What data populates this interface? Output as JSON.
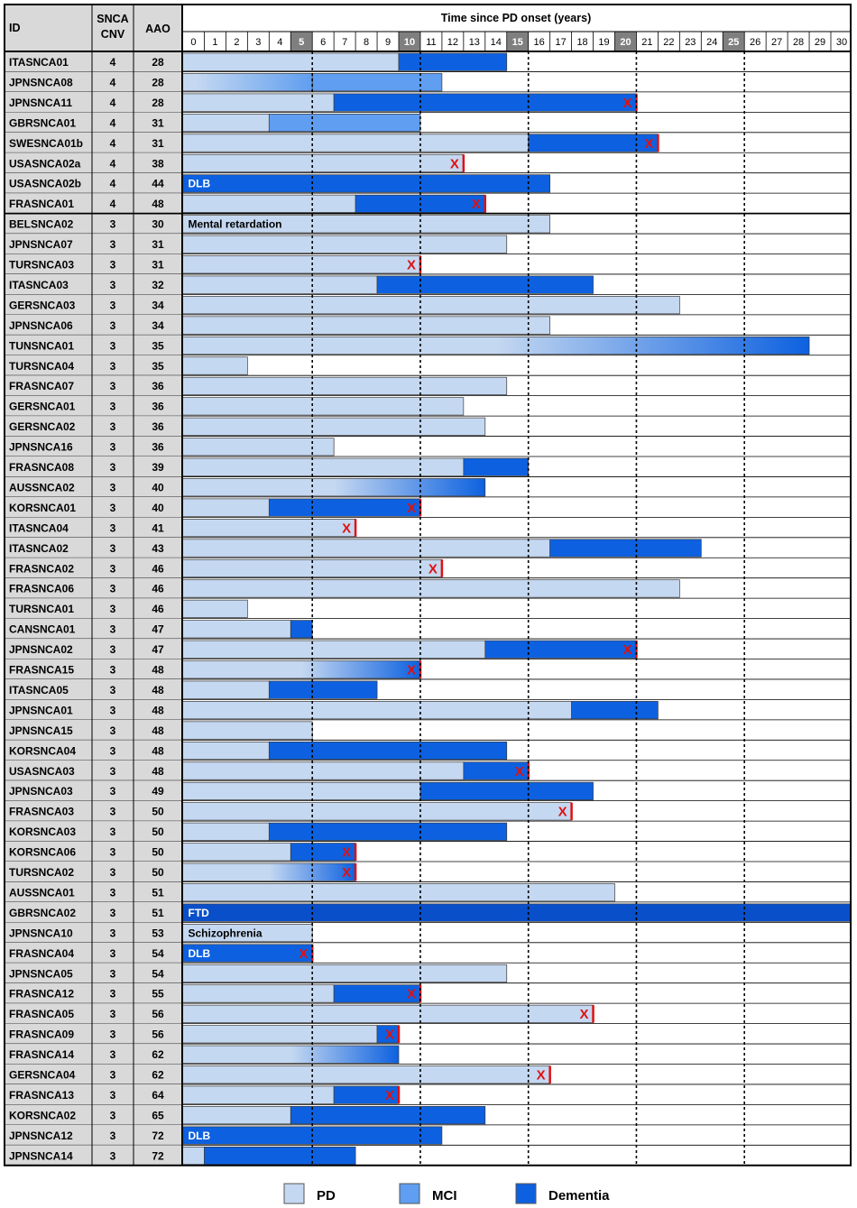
{
  "headers": {
    "id": "ID",
    "cnv_line1": "SNCA",
    "cnv_line2": "CNV",
    "aao": "AAO",
    "time": "Time since PD onset (years)"
  },
  "colors": {
    "pd": "#c5d8f1",
    "mci": "#5f9ef0",
    "dementia": "#0d61e0",
    "ftd": "#0a4fca",
    "id_column_bg": "#d9d9d9",
    "highlight_tick_bg": "#7f7f7f",
    "death_marker": "#e01010"
  },
  "legend": [
    {
      "key": "pd",
      "label": "PD"
    },
    {
      "key": "mci",
      "label": "MCI"
    },
    {
      "key": "dementia",
      "label": "Dementia"
    }
  ],
  "chart_data": {
    "type": "bar",
    "orientation": "horizontal-timeline",
    "title": "Time since PD onset (years)",
    "xlim": [
      0,
      31
    ],
    "x_ticks": [
      0,
      1,
      2,
      3,
      4,
      5,
      6,
      7,
      8,
      9,
      10,
      11,
      12,
      13,
      14,
      15,
      16,
      17,
      18,
      19,
      20,
      21,
      22,
      23,
      24,
      25,
      26,
      27,
      28,
      29,
      30
    ],
    "highlighted_ticks": [
      5,
      10,
      15,
      20,
      25
    ],
    "dotted_gridlines": [
      6,
      11,
      16,
      21,
      26
    ],
    "group_divider_after_row": 7,
    "rows": [
      {
        "id": "ITASNCA01",
        "cnv": 4,
        "aao": 28,
        "segments": [
          {
            "type": "pd",
            "from": 0,
            "to": 10
          },
          {
            "type": "dementia",
            "from": 10,
            "to": 15
          }
        ]
      },
      {
        "id": "JPNSNCA08",
        "cnv": 4,
        "aao": 28,
        "segments": [
          {
            "type": "pd-mci",
            "from": 0,
            "to": 6
          },
          {
            "type": "mci",
            "from": 6,
            "to": 12
          }
        ]
      },
      {
        "id": "JPNSNCA11",
        "cnv": 4,
        "aao": 28,
        "segments": [
          {
            "type": "pd",
            "from": 0,
            "to": 7
          },
          {
            "type": "dementia",
            "from": 7,
            "to": 21
          }
        ],
        "death": 21
      },
      {
        "id": "GBRSNCA01",
        "cnv": 4,
        "aao": 31,
        "segments": [
          {
            "type": "pd",
            "from": 0,
            "to": 4
          },
          {
            "type": "mci",
            "from": 4,
            "to": 11
          }
        ]
      },
      {
        "id": "SWESNCA01b",
        "cnv": 4,
        "aao": 31,
        "segments": [
          {
            "type": "pd",
            "from": 0,
            "to": 16
          },
          {
            "type": "dementia",
            "from": 16,
            "to": 22
          }
        ],
        "death": 22
      },
      {
        "id": "USASNCA02a",
        "cnv": 4,
        "aao": 38,
        "segments": [
          {
            "type": "pd",
            "from": 0,
            "to": 13
          }
        ],
        "death": 13
      },
      {
        "id": "USASNCA02b",
        "cnv": 4,
        "aao": 44,
        "segments": [
          {
            "type": "dementia",
            "from": 0,
            "to": 17
          }
        ],
        "note": "DLB"
      },
      {
        "id": "FRASNCA01",
        "cnv": 4,
        "aao": 48,
        "segments": [
          {
            "type": "pd",
            "from": 0,
            "to": 8
          },
          {
            "type": "dementia",
            "from": 8,
            "to": 14
          }
        ],
        "death": 14
      },
      {
        "id": "BELSNCA02",
        "cnv": 3,
        "aao": 30,
        "segments": [
          {
            "type": "pd",
            "from": 0,
            "to": 17
          }
        ],
        "note": "Mental retardation"
      },
      {
        "id": "JPNSNCA07",
        "cnv": 3,
        "aao": 31,
        "segments": [
          {
            "type": "pd",
            "from": 0,
            "to": 15
          }
        ]
      },
      {
        "id": "TURSNCA03",
        "cnv": 3,
        "aao": 31,
        "segments": [
          {
            "type": "pd",
            "from": 0,
            "to": 11
          }
        ],
        "death": 11
      },
      {
        "id": "ITASNCA03",
        "cnv": 3,
        "aao": 32,
        "segments": [
          {
            "type": "pd",
            "from": 0,
            "to": 9
          },
          {
            "type": "dementia",
            "from": 9,
            "to": 19
          }
        ]
      },
      {
        "id": "GERSNCA03",
        "cnv": 3,
        "aao": 34,
        "segments": [
          {
            "type": "pd",
            "from": 0,
            "to": 23
          }
        ]
      },
      {
        "id": "JPNSNCA06",
        "cnv": 3,
        "aao": 34,
        "segments": [
          {
            "type": "pd",
            "from": 0,
            "to": 17
          }
        ]
      },
      {
        "id": "TUNSNCA01",
        "cnv": 3,
        "aao": 35,
        "segments": [
          {
            "type": "pd-dementia",
            "from": 0,
            "to": 29
          }
        ]
      },
      {
        "id": "TURSNCA04",
        "cnv": 3,
        "aao": 35,
        "segments": [
          {
            "type": "pd",
            "from": 0,
            "to": 3
          }
        ]
      },
      {
        "id": "FRASNCA07",
        "cnv": 3,
        "aao": 36,
        "segments": [
          {
            "type": "pd",
            "from": 0,
            "to": 15
          }
        ]
      },
      {
        "id": "GERSNCA01",
        "cnv": 3,
        "aao": 36,
        "segments": [
          {
            "type": "pd",
            "from": 0,
            "to": 13
          }
        ]
      },
      {
        "id": "GERSNCA02",
        "cnv": 3,
        "aao": 36,
        "segments": [
          {
            "type": "pd",
            "from": 0,
            "to": 14
          }
        ]
      },
      {
        "id": "JPNSNCA16",
        "cnv": 3,
        "aao": 36,
        "segments": [
          {
            "type": "pd",
            "from": 0,
            "to": 7
          }
        ]
      },
      {
        "id": "FRASNCA08",
        "cnv": 3,
        "aao": 39,
        "segments": [
          {
            "type": "pd",
            "from": 0,
            "to": 13
          },
          {
            "type": "dementia",
            "from": 13,
            "to": 16
          }
        ]
      },
      {
        "id": "AUSSNCA02",
        "cnv": 3,
        "aao": 40,
        "segments": [
          {
            "type": "pd-dementia",
            "from": 0,
            "to": 14
          }
        ]
      },
      {
        "id": "KORSNCA01",
        "cnv": 3,
        "aao": 40,
        "segments": [
          {
            "type": "pd",
            "from": 0,
            "to": 4
          },
          {
            "type": "dementia",
            "from": 4,
            "to": 11
          }
        ],
        "death": 11
      },
      {
        "id": "ITASNCA04",
        "cnv": 3,
        "aao": 41,
        "segments": [
          {
            "type": "pd",
            "from": 0,
            "to": 8
          }
        ],
        "death": 8
      },
      {
        "id": "ITASNCA02",
        "cnv": 3,
        "aao": 43,
        "segments": [
          {
            "type": "pd",
            "from": 0,
            "to": 17
          },
          {
            "type": "dementia",
            "from": 17,
            "to": 24
          }
        ]
      },
      {
        "id": "FRASNCA02",
        "cnv": 3,
        "aao": 46,
        "segments": [
          {
            "type": "pd",
            "from": 0,
            "to": 12
          }
        ],
        "death": 12
      },
      {
        "id": "FRASNCA06",
        "cnv": 3,
        "aao": 46,
        "segments": [
          {
            "type": "pd",
            "from": 0,
            "to": 23
          }
        ]
      },
      {
        "id": "TURSNCA01",
        "cnv": 3,
        "aao": 46,
        "segments": [
          {
            "type": "pd",
            "from": 0,
            "to": 3
          }
        ]
      },
      {
        "id": "CANSNCA01",
        "cnv": 3,
        "aao": 47,
        "segments": [
          {
            "type": "pd",
            "from": 0,
            "to": 5
          },
          {
            "type": "dementia",
            "from": 5,
            "to": 6
          }
        ]
      },
      {
        "id": "JPNSNCA02",
        "cnv": 3,
        "aao": 47,
        "segments": [
          {
            "type": "pd",
            "from": 0,
            "to": 14
          },
          {
            "type": "dementia",
            "from": 14,
            "to": 21
          }
        ],
        "death": 21
      },
      {
        "id": "FRASNCA15",
        "cnv": 3,
        "aao": 48,
        "segments": [
          {
            "type": "pd-dementia",
            "from": 0,
            "to": 11
          }
        ],
        "death": 11
      },
      {
        "id": "ITASNCA05",
        "cnv": 3,
        "aao": 48,
        "segments": [
          {
            "type": "pd",
            "from": 0,
            "to": 4
          },
          {
            "type": "dementia",
            "from": 4,
            "to": 9
          }
        ]
      },
      {
        "id": "JPNSNCA01",
        "cnv": 3,
        "aao": 48,
        "segments": [
          {
            "type": "pd",
            "from": 0,
            "to": 18
          },
          {
            "type": "dementia",
            "from": 18,
            "to": 22
          }
        ]
      },
      {
        "id": "JPNSNCA15",
        "cnv": 3,
        "aao": 48,
        "segments": [
          {
            "type": "pd",
            "from": 0,
            "to": 6
          }
        ]
      },
      {
        "id": "KORSNCA04",
        "cnv": 3,
        "aao": 48,
        "segments": [
          {
            "type": "pd",
            "from": 0,
            "to": 4
          },
          {
            "type": "dementia",
            "from": 4,
            "to": 15
          }
        ]
      },
      {
        "id": "USASNCA03",
        "cnv": 3,
        "aao": 48,
        "segments": [
          {
            "type": "pd",
            "from": 0,
            "to": 13
          },
          {
            "type": "dementia",
            "from": 13,
            "to": 16
          }
        ],
        "death": 16
      },
      {
        "id": "JPNSNCA03",
        "cnv": 3,
        "aao": 49,
        "segments": [
          {
            "type": "pd",
            "from": 0,
            "to": 11
          },
          {
            "type": "dementia",
            "from": 11,
            "to": 19
          }
        ]
      },
      {
        "id": "FRASNCA03",
        "cnv": 3,
        "aao": 50,
        "segments": [
          {
            "type": "pd",
            "from": 0,
            "to": 18
          }
        ],
        "death": 18
      },
      {
        "id": "KORSNCA03",
        "cnv": 3,
        "aao": 50,
        "segments": [
          {
            "type": "pd",
            "from": 0,
            "to": 4
          },
          {
            "type": "dementia",
            "from": 4,
            "to": 15
          }
        ]
      },
      {
        "id": "KORSNCA06",
        "cnv": 3,
        "aao": 50,
        "segments": [
          {
            "type": "pd",
            "from": 0,
            "to": 5
          },
          {
            "type": "dementia",
            "from": 5,
            "to": 8
          }
        ],
        "death": 8
      },
      {
        "id": "TURSNCA02",
        "cnv": 3,
        "aao": 50,
        "segments": [
          {
            "type": "pd-dementia",
            "from": 0,
            "to": 8
          }
        ],
        "death": 8
      },
      {
        "id": "AUSSNCA01",
        "cnv": 3,
        "aao": 51,
        "segments": [
          {
            "type": "pd",
            "from": 0,
            "to": 20
          }
        ]
      },
      {
        "id": "GBRSNCA02",
        "cnv": 3,
        "aao": 51,
        "segments": [
          {
            "type": "ftd",
            "from": 0,
            "to": 31
          }
        ],
        "note": "FTD"
      },
      {
        "id": "JPNSNCA10",
        "cnv": 3,
        "aao": 53,
        "segments": [
          {
            "type": "pd",
            "from": 0,
            "to": 6
          }
        ],
        "note": "Schizophrenia"
      },
      {
        "id": "FRASNCA04",
        "cnv": 3,
        "aao": 54,
        "segments": [
          {
            "type": "dementia",
            "from": 0,
            "to": 6
          }
        ],
        "note": "DLB",
        "death": 6
      },
      {
        "id": "JPNSNCA05",
        "cnv": 3,
        "aao": 54,
        "segments": [
          {
            "type": "pd",
            "from": 0,
            "to": 15
          }
        ]
      },
      {
        "id": "FRASNCA12",
        "cnv": 3,
        "aao": 55,
        "segments": [
          {
            "type": "pd",
            "from": 0,
            "to": 7
          },
          {
            "type": "dementia",
            "from": 7,
            "to": 11
          }
        ],
        "death": 11
      },
      {
        "id": "FRASNCA05",
        "cnv": 3,
        "aao": 56,
        "segments": [
          {
            "type": "pd",
            "from": 0,
            "to": 19
          }
        ],
        "death": 19
      },
      {
        "id": "FRASNCA09",
        "cnv": 3,
        "aao": 56,
        "segments": [
          {
            "type": "pd",
            "from": 0,
            "to": 9
          },
          {
            "type": "dementia",
            "from": 9,
            "to": 10
          }
        ],
        "death": 10
      },
      {
        "id": "FRASNCA14",
        "cnv": 3,
        "aao": 62,
        "segments": [
          {
            "type": "pd-dementia",
            "from": 0,
            "to": 10
          }
        ]
      },
      {
        "id": "GERSNCA04",
        "cnv": 3,
        "aao": 62,
        "segments": [
          {
            "type": "pd",
            "from": 0,
            "to": 17
          }
        ],
        "death": 17
      },
      {
        "id": "FRASNCA13",
        "cnv": 3,
        "aao": 64,
        "segments": [
          {
            "type": "pd",
            "from": 0,
            "to": 7
          },
          {
            "type": "dementia",
            "from": 7,
            "to": 10
          }
        ],
        "death": 10
      },
      {
        "id": "KORSNCA02",
        "cnv": 3,
        "aao": 65,
        "segments": [
          {
            "type": "pd",
            "from": 0,
            "to": 5
          },
          {
            "type": "dementia",
            "from": 5,
            "to": 14
          }
        ]
      },
      {
        "id": "JPNSNCA12",
        "cnv": 3,
        "aao": 72,
        "segments": [
          {
            "type": "dementia",
            "from": 0,
            "to": 12
          }
        ],
        "note": "DLB"
      },
      {
        "id": "JPNSNCA14",
        "cnv": 3,
        "aao": 72,
        "segments": [
          {
            "type": "pd",
            "from": 0,
            "to": 1
          },
          {
            "type": "dementia",
            "from": 1,
            "to": 8
          }
        ]
      }
    ]
  }
}
